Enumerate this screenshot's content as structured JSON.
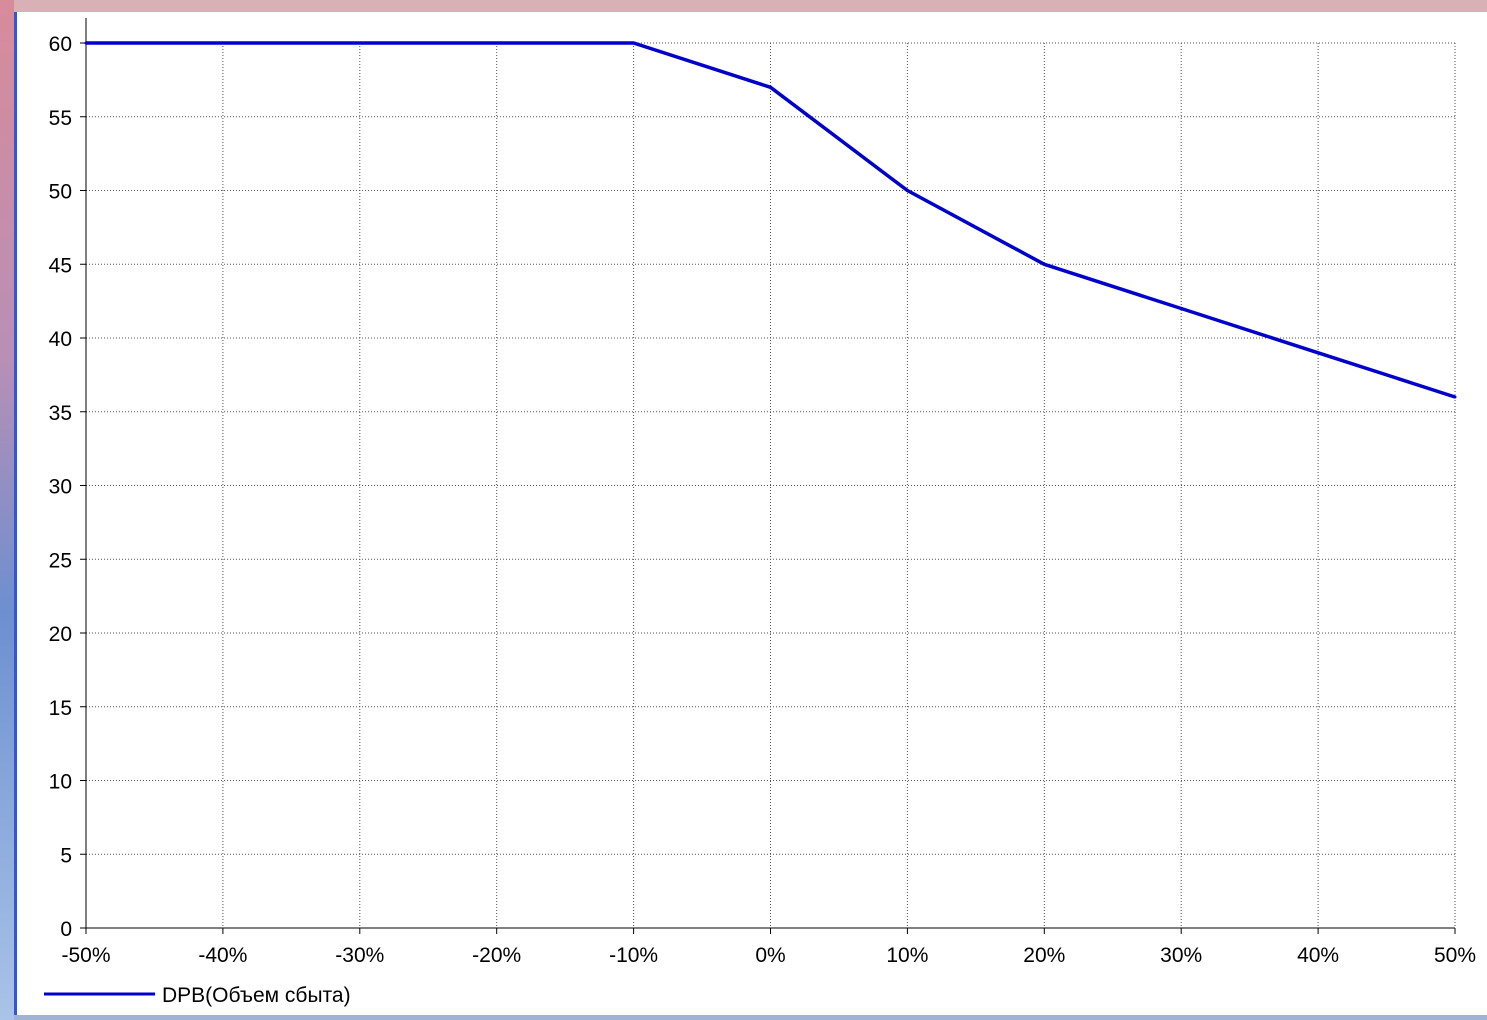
{
  "chart_data": {
    "type": "line",
    "title": "",
    "xlabel": "",
    "ylabel": "",
    "x_tick_labels": [
      "-50%",
      "-40%",
      "-30%",
      "-20%",
      "-10%",
      "0%",
      "10%",
      "20%",
      "30%",
      "40%",
      "50%"
    ],
    "y_tick_labels": [
      "0",
      "5",
      "10",
      "15",
      "20",
      "25",
      "30",
      "35",
      "40",
      "45",
      "50",
      "55",
      "60"
    ],
    "xlim": [
      -50,
      50
    ],
    "ylim": [
      0,
      60
    ],
    "grid": true,
    "legend_position": "bottom-left",
    "series": [
      {
        "name": "DPB(Объем сбыта)",
        "color": "#0000cc",
        "x": [
          -50,
          -40,
          -30,
          -20,
          -10,
          0,
          10,
          20,
          30,
          40,
          50
        ],
        "values": [
          60,
          60,
          60,
          60,
          60,
          57,
          50,
          45,
          42,
          39,
          36
        ]
      }
    ]
  }
}
